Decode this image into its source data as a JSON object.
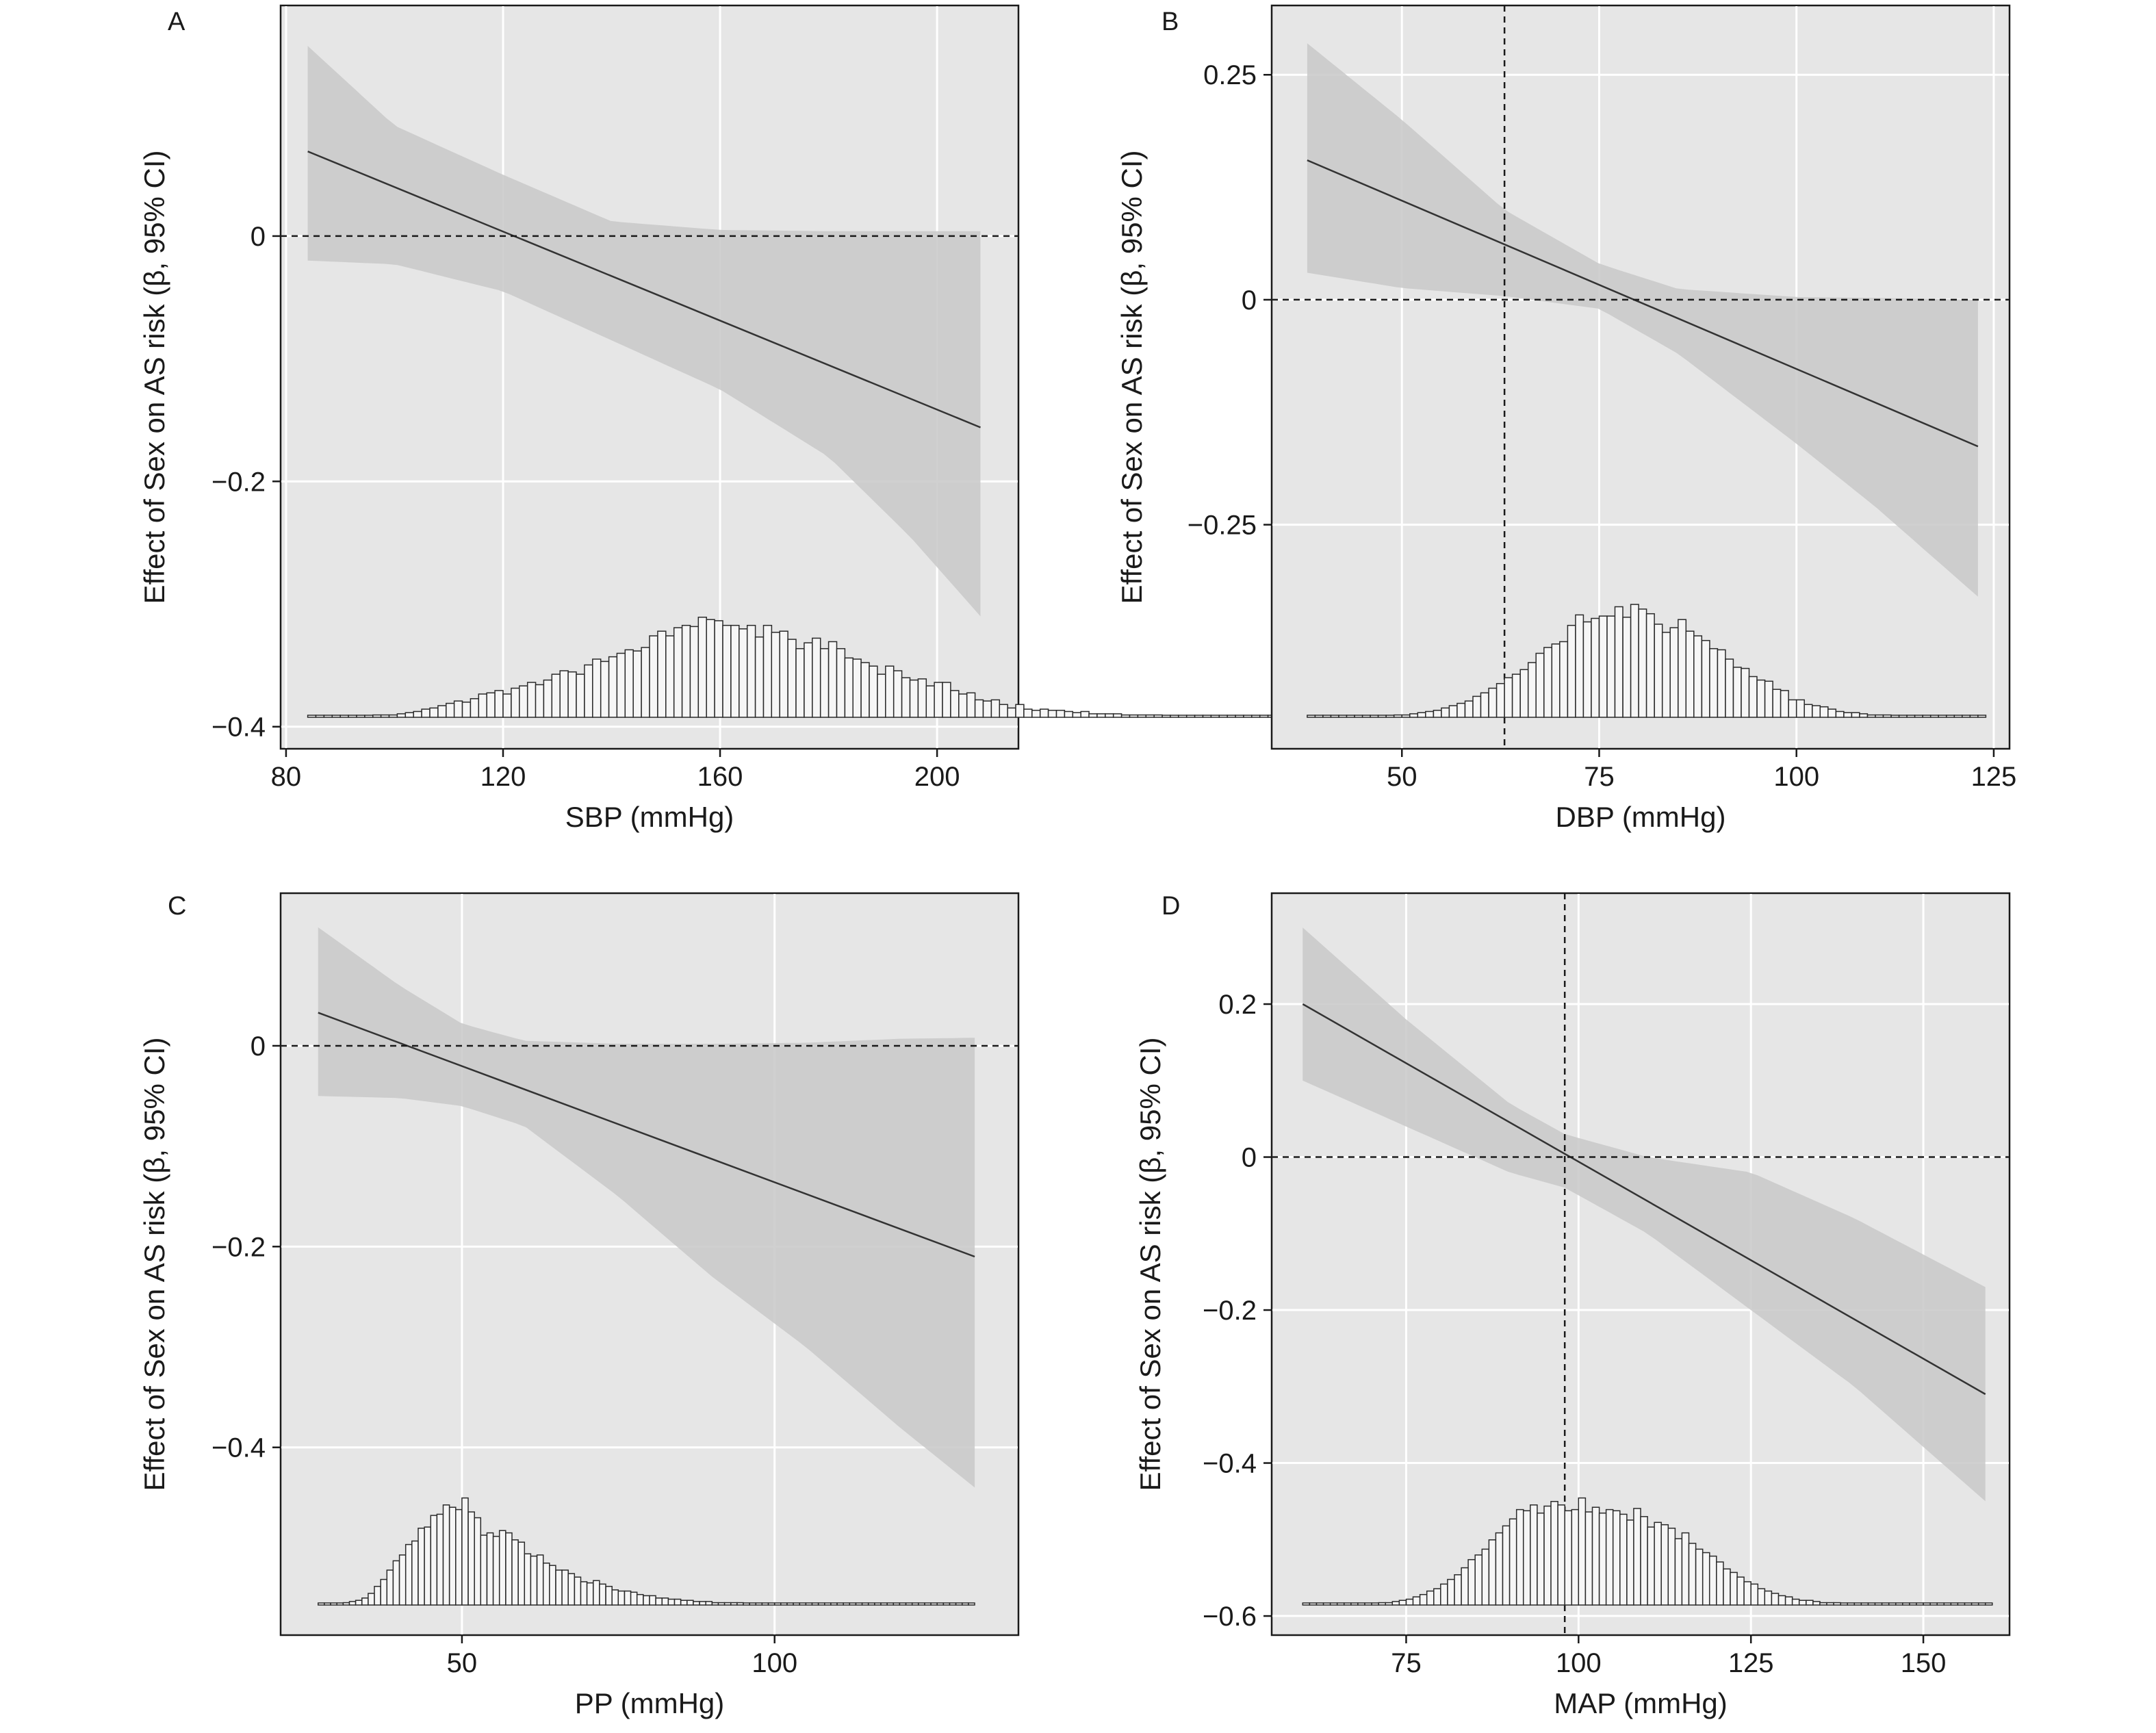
{
  "chart_data": [
    {
      "type": "line",
      "panel": "A",
      "xlabel": "SBP (mmHg)",
      "ylabel": "Effect of Sex on AS risk (β, 95% CI)",
      "xlim": [
        79,
        215
      ],
      "ylim": [
        -0.418,
        0.188
      ],
      "xticks": [
        80,
        120,
        160,
        200
      ],
      "yticks": [
        0,
        -0.2,
        -0.4
      ],
      "grid": true,
      "fit": {
        "x": [
          84,
          208
        ],
        "y": [
          0.069,
          -0.156
        ]
      },
      "ci": {
        "x": [
          84,
          100,
          120,
          140,
          160,
          180,
          195,
          208
        ],
        "upper": [
          0.155,
          0.09,
          0.05,
          0.012,
          0.005,
          0.004,
          0.004,
          0.004
        ],
        "lower": [
          -0.02,
          -0.023,
          -0.045,
          -0.085,
          -0.125,
          -0.18,
          -0.245,
          -0.31
        ]
      },
      "hline": 0,
      "histogram": {
        "x_start": 84,
        "bin_width": 1.5,
        "counts": [
          0.01,
          0.01,
          0.01,
          0.01,
          0.01,
          0.01,
          0.01,
          0.01,
          0.02,
          0.02,
          0.02,
          0.03,
          0.04,
          0.05,
          0.07,
          0.08,
          0.1,
          0.12,
          0.14,
          0.13,
          0.16,
          0.2,
          0.21,
          0.23,
          0.2,
          0.25,
          0.27,
          0.3,
          0.28,
          0.32,
          0.37,
          0.4,
          0.39,
          0.37,
          0.45,
          0.5,
          0.48,
          0.52,
          0.55,
          0.58,
          0.57,
          0.6,
          0.7,
          0.74,
          0.7,
          0.77,
          0.79,
          0.78,
          0.86,
          0.84,
          0.83,
          0.79,
          0.79,
          0.76,
          0.79,
          0.69,
          0.79,
          0.73,
          0.74,
          0.67,
          0.59,
          0.64,
          0.68,
          0.59,
          0.65,
          0.59,
          0.51,
          0.5,
          0.47,
          0.44,
          0.37,
          0.44,
          0.4,
          0.34,
          0.32,
          0.33,
          0.27,
          0.3,
          0.3,
          0.23,
          0.2,
          0.21,
          0.15,
          0.14,
          0.15,
          0.11,
          0.08,
          0.11,
          0.07,
          0.06,
          0.07,
          0.06,
          0.06,
          0.05,
          0.04,
          0.05,
          0.03,
          0.03,
          0.03,
          0.03,
          0.02,
          0.02,
          0.02,
          0.02,
          0.02,
          0.01,
          0.01,
          0.01,
          0.01,
          0.01,
          0.01,
          0.01,
          0.01,
          0.01,
          0.01,
          0.01,
          0.01,
          0.01,
          0.01,
          0.01,
          0.01,
          0.01,
          0.01
        ]
      },
      "tick_labels": {
        "x": [
          "80",
          "120",
          "160",
          "200"
        ],
        "y": [
          "0",
          "−0.2",
          "−0.4"
        ]
      }
    },
    {
      "type": "line",
      "panel": "B",
      "xlabel": "DBP (mmHg)",
      "ylabel": "Effect of Sex on AS risk (β, 95% CI)",
      "xlim": [
        33.5,
        127
      ],
      "ylim": [
        -0.499,
        0.327
      ],
      "xticks": [
        50,
        75,
        100,
        125
      ],
      "yticks": [
        0.25,
        0,
        -0.25
      ],
      "grid": true,
      "fit": {
        "x": [
          38,
          123
        ],
        "y": [
          0.155,
          -0.163
        ]
      },
      "ci": {
        "x": [
          38,
          50,
          63,
          75,
          85,
          100,
          110,
          123
        ],
        "upper": [
          0.285,
          0.2,
          0.1,
          0.04,
          0.012,
          0.003,
          0.002,
          0.0
        ],
        "lower": [
          0.03,
          0.013,
          0.004,
          -0.01,
          -0.06,
          -0.16,
          -0.23,
          -0.33
        ]
      },
      "hline": 0,
      "vline": 63,
      "histogram": {
        "x_start": 38,
        "bin_width": 1,
        "counts": [
          0.01,
          0.01,
          0.01,
          0.01,
          0.01,
          0.01,
          0.01,
          0.01,
          0.01,
          0.01,
          0.01,
          0.02,
          0.02,
          0.03,
          0.04,
          0.05,
          0.06,
          0.08,
          0.1,
          0.12,
          0.14,
          0.18,
          0.21,
          0.25,
          0.29,
          0.34,
          0.37,
          0.41,
          0.47,
          0.55,
          0.6,
          0.63,
          0.65,
          0.79,
          0.88,
          0.82,
          0.85,
          0.87,
          0.87,
          0.95,
          0.86,
          0.97,
          0.93,
          0.89,
          0.8,
          0.73,
          0.77,
          0.84,
          0.74,
          0.7,
          0.66,
          0.59,
          0.58,
          0.5,
          0.43,
          0.42,
          0.35,
          0.32,
          0.31,
          0.24,
          0.23,
          0.15,
          0.15,
          0.11,
          0.1,
          0.09,
          0.07,
          0.05,
          0.04,
          0.04,
          0.03,
          0.02,
          0.02,
          0.02,
          0.01,
          0.01,
          0.01,
          0.01,
          0.01,
          0.01,
          0.01,
          0.01,
          0.01,
          0.01,
          0.01,
          0.01
        ]
      },
      "tick_labels": {
        "x": [
          "50",
          "75",
          "100",
          "125"
        ],
        "y": [
          "0.25",
          "0",
          "−0.25"
        ]
      }
    },
    {
      "type": "line",
      "panel": "C",
      "xlabel": "PP (mmHg)",
      "ylabel": "Effect of Sex on AS risk (β, 95% CI)",
      "xlim": [
        21,
        139
      ],
      "ylim": [
        -0.587,
        0.152
      ],
      "xticks": [
        50,
        100
      ],
      "yticks": [
        0,
        -0.2,
        -0.4
      ],
      "grid": true,
      "fit": {
        "x": [
          27,
          132
        ],
        "y": [
          0.033,
          -0.21
        ]
      },
      "ci": {
        "x": [
          27,
          40,
          50,
          60,
          75,
          90,
          105,
          120,
          132
        ],
        "upper": [
          0.118,
          0.06,
          0.022,
          0.005,
          0.002,
          0.002,
          0.003,
          0.007,
          0.008
        ],
        "lower": [
          -0.05,
          -0.052,
          -0.06,
          -0.08,
          -0.15,
          -0.23,
          -0.3,
          -0.38,
          -0.44
        ]
      },
      "hline": 0,
      "histogram": {
        "x_start": 27,
        "bin_width": 1,
        "counts": [
          0.01,
          0.01,
          0.01,
          0.01,
          0.02,
          0.03,
          0.04,
          0.06,
          0.1,
          0.16,
          0.22,
          0.3,
          0.38,
          0.43,
          0.52,
          0.55,
          0.66,
          0.67,
          0.77,
          0.78,
          0.86,
          0.84,
          0.82,
          0.92,
          0.8,
          0.75,
          0.6,
          0.62,
          0.59,
          0.64,
          0.62,
          0.56,
          0.54,
          0.44,
          0.42,
          0.43,
          0.36,
          0.34,
          0.3,
          0.3,
          0.27,
          0.24,
          0.2,
          0.19,
          0.21,
          0.18,
          0.16,
          0.13,
          0.12,
          0.12,
          0.11,
          0.09,
          0.08,
          0.08,
          0.06,
          0.06,
          0.05,
          0.05,
          0.04,
          0.04,
          0.03,
          0.03,
          0.03,
          0.02,
          0.02,
          0.02,
          0.02,
          0.02,
          0.01,
          0.01,
          0.01,
          0.01,
          0.01,
          0.01,
          0.01,
          0.01,
          0.01,
          0.01,
          0.01,
          0.01,
          0.01,
          0.01,
          0.01,
          0.01,
          0.01,
          0.01,
          0.01,
          0.01,
          0.01,
          0.01,
          0.01,
          0.01,
          0.01,
          0.01,
          0.01,
          0.01,
          0.01,
          0.01,
          0.01,
          0.01,
          0.01,
          0.01,
          0.01,
          0.01,
          0.01
        ]
      },
      "tick_labels": {
        "x": [
          "50",
          "100"
        ],
        "y": [
          "0",
          "−0.2",
          "−0.4"
        ]
      }
    },
    {
      "type": "line",
      "panel": "D",
      "xlabel": "MAP (mmHg)",
      "ylabel": "Effect of Sex on AS risk (β, 95% CI)",
      "xlim": [
        55.5,
        162.5
      ],
      "ylim": [
        -0.625,
        0.345
      ],
      "xticks": [
        75,
        100,
        125,
        150
      ],
      "yticks": [
        0.2,
        0,
        -0.2,
        -0.4,
        -0.6
      ],
      "grid": true,
      "fit": {
        "x": [
          60,
          159
        ],
        "y": [
          0.2,
          -0.31
        ]
      },
      "ci": {
        "x": [
          60,
          75,
          90,
          98,
          110,
          125,
          140,
          159
        ],
        "upper": [
          0.3,
          0.18,
          0.07,
          0.03,
          0.0,
          -0.02,
          -0.08,
          -0.17
        ],
        "lower": [
          0.1,
          0.04,
          -0.02,
          -0.04,
          -0.1,
          -0.2,
          -0.3,
          -0.45
        ]
      },
      "hline": 0,
      "vline": 98,
      "histogram": {
        "x_start": 60,
        "bin_width": 1,
        "counts": [
          0.01,
          0.01,
          0.01,
          0.01,
          0.01,
          0.01,
          0.01,
          0.01,
          0.01,
          0.01,
          0.01,
          0.02,
          0.02,
          0.03,
          0.04,
          0.05,
          0.07,
          0.09,
          0.12,
          0.14,
          0.18,
          0.22,
          0.26,
          0.32,
          0.39,
          0.43,
          0.48,
          0.56,
          0.62,
          0.68,
          0.74,
          0.82,
          0.81,
          0.86,
          0.79,
          0.85,
          0.89,
          0.86,
          0.81,
          0.82,
          0.92,
          0.8,
          0.84,
          0.79,
          0.82,
          0.81,
          0.78,
          0.73,
          0.83,
          0.76,
          0.67,
          0.71,
          0.69,
          0.66,
          0.57,
          0.62,
          0.53,
          0.48,
          0.45,
          0.42,
          0.37,
          0.31,
          0.28,
          0.24,
          0.2,
          0.18,
          0.14,
          0.12,
          0.1,
          0.08,
          0.07,
          0.05,
          0.04,
          0.04,
          0.03,
          0.02,
          0.02,
          0.02,
          0.01,
          0.01,
          0.01,
          0.01,
          0.01,
          0.01,
          0.01,
          0.01,
          0.01,
          0.01,
          0.01,
          0.01,
          0.01,
          0.01,
          0.01,
          0.01,
          0.01,
          0.01,
          0.01,
          0.01,
          0.01,
          0.01
        ]
      },
      "tick_labels": {
        "x": [
          "75",
          "100",
          "125",
          "150"
        ],
        "y": [
          "0.2",
          "0",
          "−0.2",
          "−0.4",
          "−0.6"
        ]
      }
    }
  ]
}
